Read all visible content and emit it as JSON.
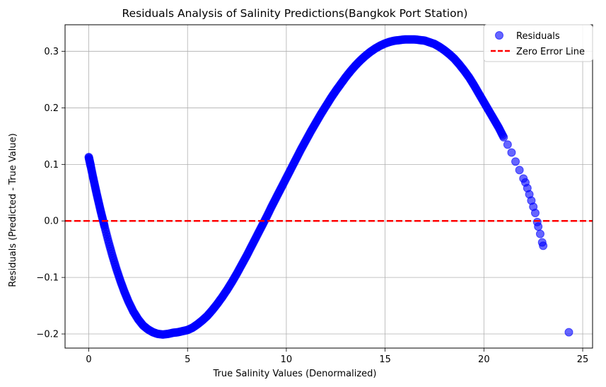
{
  "chart_data": {
    "type": "scatter",
    "title": "Residuals Analysis of Salinity Predictions(Bangkok Port Station)",
    "xlabel": "True Salinity Values (Denormalized)",
    "ylabel": "Residuals (Predicted - True Value)",
    "xlim": [
      -1.2,
      25.5
    ],
    "ylim": [
      -0.225,
      0.347
    ],
    "xticks": [
      0,
      5,
      10,
      15,
      20,
      25
    ],
    "yticks": [
      -0.2,
      -0.1,
      0.0,
      0.1,
      0.2,
      0.3
    ],
    "xtick_labels": [
      "0",
      "5",
      "10",
      "15",
      "20",
      "25"
    ],
    "ytick_labels": [
      "−0.2",
      "−0.1",
      "0.0",
      "0.1",
      "0.2",
      "0.3"
    ],
    "grid": true,
    "legend_position": "top-right",
    "series": [
      {
        "name": "Residuals",
        "kind": "scatter",
        "color": "#0000ff",
        "alpha": 0.6,
        "points": [
          [
            0.0,
            0.113
          ],
          [
            0.05,
            0.105
          ],
          [
            0.1,
            0.097
          ],
          [
            0.2,
            0.08
          ],
          [
            0.3,
            0.064
          ],
          [
            0.4,
            0.048
          ],
          [
            0.5,
            0.033
          ],
          [
            0.6,
            0.018
          ],
          [
            0.7,
            0.004
          ],
          [
            0.8,
            -0.01
          ],
          [
            1.0,
            -0.037
          ],
          [
            1.2,
            -0.062
          ],
          [
            1.4,
            -0.085
          ],
          [
            1.6,
            -0.106
          ],
          [
            1.8,
            -0.125
          ],
          [
            2.0,
            -0.142
          ],
          [
            2.25,
            -0.16
          ],
          [
            2.5,
            -0.174
          ],
          [
            2.75,
            -0.185
          ],
          [
            3.0,
            -0.192
          ],
          [
            3.25,
            -0.197
          ],
          [
            3.5,
            -0.2
          ],
          [
            3.75,
            -0.201
          ],
          [
            4.0,
            -0.2
          ],
          [
            4.25,
            -0.198
          ],
          [
            4.5,
            -0.197
          ],
          [
            4.75,
            -0.195
          ],
          [
            5.0,
            -0.193
          ],
          [
            5.25,
            -0.189
          ],
          [
            5.5,
            -0.183
          ],
          [
            5.75,
            -0.176
          ],
          [
            6.0,
            -0.168
          ],
          [
            6.25,
            -0.158
          ],
          [
            6.5,
            -0.147
          ],
          [
            6.75,
            -0.135
          ],
          [
            7.0,
            -0.122
          ],
          [
            7.25,
            -0.108
          ],
          [
            7.5,
            -0.093
          ],
          [
            7.75,
            -0.077
          ],
          [
            8.0,
            -0.061
          ],
          [
            8.25,
            -0.044
          ],
          [
            8.5,
            -0.027
          ],
          [
            8.75,
            -0.01
          ],
          [
            9.0,
            0.007
          ],
          [
            9.25,
            0.025
          ],
          [
            9.5,
            0.042
          ],
          [
            9.75,
            0.059
          ],
          [
            10.0,
            0.076
          ],
          [
            10.25,
            0.093
          ],
          [
            10.5,
            0.11
          ],
          [
            10.75,
            0.127
          ],
          [
            11.0,
            0.143
          ],
          [
            11.25,
            0.159
          ],
          [
            11.5,
            0.174
          ],
          [
            11.75,
            0.189
          ],
          [
            12.0,
            0.203
          ],
          [
            12.25,
            0.217
          ],
          [
            12.5,
            0.23
          ],
          [
            12.75,
            0.242
          ],
          [
            13.0,
            0.254
          ],
          [
            13.25,
            0.265
          ],
          [
            13.5,
            0.275
          ],
          [
            13.75,
            0.284
          ],
          [
            14.0,
            0.292
          ],
          [
            14.25,
            0.299
          ],
          [
            14.5,
            0.305
          ],
          [
            14.75,
            0.31
          ],
          [
            15.0,
            0.314
          ],
          [
            15.25,
            0.317
          ],
          [
            15.5,
            0.319
          ],
          [
            15.75,
            0.32
          ],
          [
            16.0,
            0.321
          ],
          [
            16.25,
            0.321
          ],
          [
            16.5,
            0.321
          ],
          [
            16.75,
            0.32
          ],
          [
            17.0,
            0.319
          ],
          [
            17.25,
            0.316
          ],
          [
            17.5,
            0.313
          ],
          [
            17.75,
            0.308
          ],
          [
            18.0,
            0.302
          ],
          [
            18.25,
            0.295
          ],
          [
            18.5,
            0.287
          ],
          [
            18.75,
            0.277
          ],
          [
            19.0,
            0.266
          ],
          [
            19.25,
            0.254
          ],
          [
            19.5,
            0.24
          ],
          [
            19.75,
            0.225
          ],
          [
            20.0,
            0.21
          ],
          [
            20.25,
            0.195
          ],
          [
            20.5,
            0.18
          ],
          [
            20.75,
            0.165
          ],
          [
            21.0,
            0.148
          ],
          [
            21.2,
            0.135
          ],
          [
            21.4,
            0.121
          ],
          [
            21.6,
            0.105
          ],
          [
            21.8,
            0.09
          ],
          [
            22.0,
            0.075
          ],
          [
            22.1,
            0.068
          ],
          [
            22.2,
            0.058
          ],
          [
            22.3,
            0.047
          ],
          [
            22.4,
            0.036
          ],
          [
            22.5,
            0.025
          ],
          [
            22.6,
            0.014
          ],
          [
            22.7,
            -0.002
          ],
          [
            22.75,
            -0.01
          ],
          [
            22.85,
            -0.023
          ],
          [
            22.95,
            -0.038
          ],
          [
            23.0,
            -0.044
          ],
          [
            24.3,
            -0.197
          ]
        ]
      },
      {
        "name": "Zero Error Line",
        "kind": "hline",
        "y": 0.0,
        "color": "#ff0000",
        "linestyle": "dashed"
      }
    ]
  }
}
